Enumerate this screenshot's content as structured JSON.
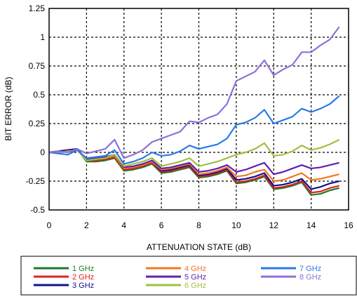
{
  "chart_data": {
    "type": "line",
    "title": "",
    "xlabel": "ATTENUATION STATE (dB)",
    "ylabel": "BIT ERROR (dB)",
    "xlim": [
      0,
      16
    ],
    "ylim": [
      -0.5,
      1.25
    ],
    "xticks": [
      0,
      2,
      4,
      6,
      8,
      10,
      12,
      14,
      16
    ],
    "yticks": [
      -0.5,
      -0.25,
      0,
      0.25,
      0.5,
      0.75,
      1,
      1.25
    ],
    "xtick_labels": [
      "0",
      "2",
      "4",
      "6",
      "8",
      "10",
      "12",
      "14",
      "16"
    ],
    "ytick_labels": [
      "-0.5",
      "-0.25",
      "0",
      "0.25",
      "0.5",
      "0.75",
      "1",
      "1.25"
    ],
    "grid": true,
    "legend_placement": "bottom",
    "x": [
      0,
      0.5,
      1,
      1.5,
      2,
      2.5,
      3,
      3.5,
      4,
      4.5,
      5,
      5.5,
      6,
      6.5,
      7,
      7.5,
      8,
      8.5,
      9,
      9.5,
      10,
      10.5,
      11,
      11.5,
      12,
      12.5,
      13,
      13.5,
      14,
      14.5,
      15,
      15.5
    ],
    "series": [
      {
        "name": "1 GHz",
        "color": "#1a7a2a",
        "values": [
          0,
          0.01,
          0.02,
          0.03,
          -0.08,
          -0.08,
          -0.07,
          -0.05,
          -0.16,
          -0.15,
          -0.13,
          -0.1,
          -0.18,
          -0.17,
          -0.15,
          -0.13,
          -0.22,
          -0.21,
          -0.19,
          -0.16,
          -0.27,
          -0.26,
          -0.24,
          -0.21,
          -0.32,
          -0.31,
          -0.29,
          -0.26,
          -0.37,
          -0.36,
          -0.33,
          -0.31
        ]
      },
      {
        "name": "2 GHz",
        "color": "#e02020",
        "values": [
          0,
          0.01,
          0.02,
          0.03,
          -0.07,
          -0.07,
          -0.06,
          -0.04,
          -0.15,
          -0.14,
          -0.12,
          -0.09,
          -0.17,
          -0.16,
          -0.14,
          -0.12,
          -0.21,
          -0.2,
          -0.18,
          -0.15,
          -0.26,
          -0.25,
          -0.23,
          -0.2,
          -0.31,
          -0.3,
          -0.28,
          -0.25,
          -0.35,
          -0.34,
          -0.31,
          -0.29
        ]
      },
      {
        "name": "3 GHz",
        "color": "#101090",
        "values": [
          0,
          0.01,
          0.02,
          0.03,
          -0.06,
          -0.06,
          -0.05,
          -0.03,
          -0.14,
          -0.13,
          -0.11,
          -0.08,
          -0.16,
          -0.15,
          -0.13,
          -0.11,
          -0.2,
          -0.19,
          -0.17,
          -0.14,
          -0.24,
          -0.23,
          -0.21,
          -0.18,
          -0.29,
          -0.28,
          -0.26,
          -0.23,
          -0.32,
          -0.3,
          -0.27,
          -0.25
        ]
      },
      {
        "name": "4 GHz",
        "color": "#f07820",
        "values": [
          0,
          0.0,
          0.01,
          0.02,
          -0.06,
          -0.06,
          -0.05,
          -0.03,
          -0.14,
          -0.13,
          -0.11,
          -0.08,
          -0.15,
          -0.14,
          -0.12,
          -0.1,
          -0.19,
          -0.18,
          -0.16,
          -0.13,
          -0.21,
          -0.2,
          -0.17,
          -0.15,
          -0.25,
          -0.24,
          -0.21,
          -0.18,
          -0.24,
          -0.23,
          -0.21,
          -0.19
        ]
      },
      {
        "name": "5 GHz",
        "color": "#6020b0",
        "values": [
          0,
          0.0,
          0.01,
          0.02,
          -0.06,
          -0.05,
          -0.04,
          -0.02,
          -0.13,
          -0.12,
          -0.1,
          -0.07,
          -0.14,
          -0.13,
          -0.11,
          -0.09,
          -0.17,
          -0.16,
          -0.14,
          -0.11,
          -0.17,
          -0.15,
          -0.12,
          -0.09,
          -0.19,
          -0.17,
          -0.14,
          -0.11,
          -0.14,
          -0.13,
          -0.11,
          -0.09
        ]
      },
      {
        "name": "6 GHz",
        "color": "#a0c040",
        "values": [
          0,
          0.0,
          0.01,
          0.02,
          -0.07,
          -0.06,
          -0.05,
          -0.02,
          -0.12,
          -0.1,
          -0.08,
          -0.05,
          -0.12,
          -0.1,
          -0.08,
          -0.05,
          -0.12,
          -0.1,
          -0.08,
          -0.05,
          -0.02,
          0.0,
          0.03,
          0.08,
          -0.03,
          -0.02,
          0.01,
          0.06,
          0.02,
          0.04,
          0.07,
          0.11
        ]
      },
      {
        "name": "7 GHz",
        "color": "#2a7ae8",
        "values": [
          0,
          -0.01,
          -0.02,
          0.02,
          -0.05,
          -0.04,
          -0.03,
          0.02,
          -0.1,
          -0.08,
          -0.05,
          0.0,
          -0.03,
          -0.02,
          0.01,
          0.06,
          0.03,
          0.05,
          0.07,
          0.12,
          0.24,
          0.26,
          0.3,
          0.37,
          0.25,
          0.28,
          0.31,
          0.38,
          0.35,
          0.38,
          0.42,
          0.49
        ]
      },
      {
        "name": "8 GHz",
        "color": "#9070d8",
        "values": [
          0,
          0.01,
          0.0,
          0.03,
          -0.01,
          0.01,
          0.03,
          0.11,
          -0.05,
          -0.02,
          0.02,
          0.09,
          0.12,
          0.15,
          0.18,
          0.27,
          0.26,
          0.3,
          0.33,
          0.42,
          0.62,
          0.66,
          0.7,
          0.8,
          0.67,
          0.72,
          0.76,
          0.87,
          0.87,
          0.93,
          0.98,
          1.09
        ]
      }
    ]
  }
}
